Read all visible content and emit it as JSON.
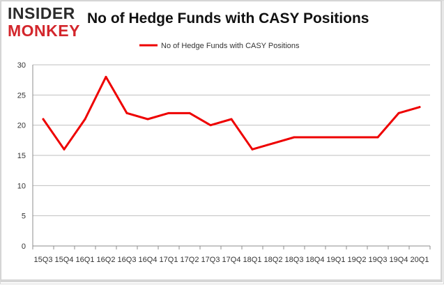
{
  "header": {
    "logo_line1": "INSIDER",
    "logo_line2": "MONKEY",
    "title": "No of Hedge Funds with CASY Positions"
  },
  "colors": {
    "series": "#ee0000",
    "grid": "#bfbfbf",
    "axis": "#8c8c8c",
    "logo_red": "#d3262c"
  },
  "chart_data": {
    "type": "line",
    "title": "No of Hedge Funds with CASY Positions",
    "xlabel": "",
    "ylabel": "",
    "ylim": [
      0,
      30
    ],
    "yticks": [
      0,
      5,
      10,
      15,
      20,
      25,
      30
    ],
    "grid": true,
    "legend_position": "top",
    "categories": [
      "15Q3",
      "15Q4",
      "16Q1",
      "16Q2",
      "16Q3",
      "16Q4",
      "17Q1",
      "17Q2",
      "17Q3",
      "17Q4",
      "18Q1",
      "18Q2",
      "18Q3",
      "18Q4",
      "19Q1",
      "19Q2",
      "19Q3",
      "19Q4",
      "20Q1"
    ],
    "series": [
      {
        "name": "No of Hedge Funds with CASY Positions",
        "values": [
          21,
          16,
          21,
          28,
          22,
          21,
          22,
          22,
          20,
          21,
          16,
          17,
          18,
          18,
          18,
          18,
          18,
          22,
          23
        ]
      }
    ]
  }
}
